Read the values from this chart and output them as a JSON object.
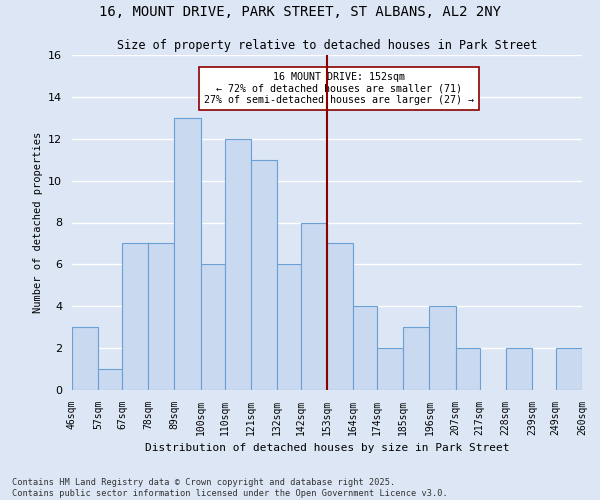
{
  "title1": "16, MOUNT DRIVE, PARK STREET, ST ALBANS, AL2 2NY",
  "title2": "Size of property relative to detached houses in Park Street",
  "xlabel": "Distribution of detached houses by size in Park Street",
  "ylabel": "Number of detached properties",
  "bin_labels": [
    "46sqm",
    "57sqm",
    "67sqm",
    "78sqm",
    "89sqm",
    "100sqm",
    "110sqm",
    "121sqm",
    "132sqm",
    "142sqm",
    "153sqm",
    "164sqm",
    "174sqm",
    "185sqm",
    "196sqm",
    "207sqm",
    "217sqm",
    "228sqm",
    "239sqm",
    "249sqm",
    "260sqm"
  ],
  "bin_edges": [
    46,
    57,
    67,
    78,
    89,
    100,
    110,
    121,
    132,
    142,
    153,
    164,
    174,
    185,
    196,
    207,
    217,
    228,
    239,
    249,
    260
  ],
  "counts": [
    3,
    1,
    7,
    7,
    13,
    6,
    12,
    11,
    6,
    8,
    7,
    4,
    2,
    3,
    4,
    2,
    0,
    2,
    0,
    2
  ],
  "bar_facecolor": "#c9d9f0",
  "bar_edgecolor": "#6aa0d4",
  "vline_x": 153,
  "vline_color": "#8b0000",
  "annotation_text": "16 MOUNT DRIVE: 152sqm\n← 72% of detached houses are smaller (71)\n27% of semi-detached houses are larger (27) →",
  "annotation_box_edgecolor": "#8b0000",
  "annotation_box_facecolor": "#ffffff",
  "ylim": [
    0,
    16
  ],
  "yticks": [
    0,
    2,
    4,
    6,
    8,
    10,
    12,
    14,
    16
  ],
  "footer": "Contains HM Land Registry data © Crown copyright and database right 2025.\nContains public sector information licensed under the Open Government Licence v3.0.",
  "bg_color": "#dce6f5",
  "grid_color": "#ffffff"
}
